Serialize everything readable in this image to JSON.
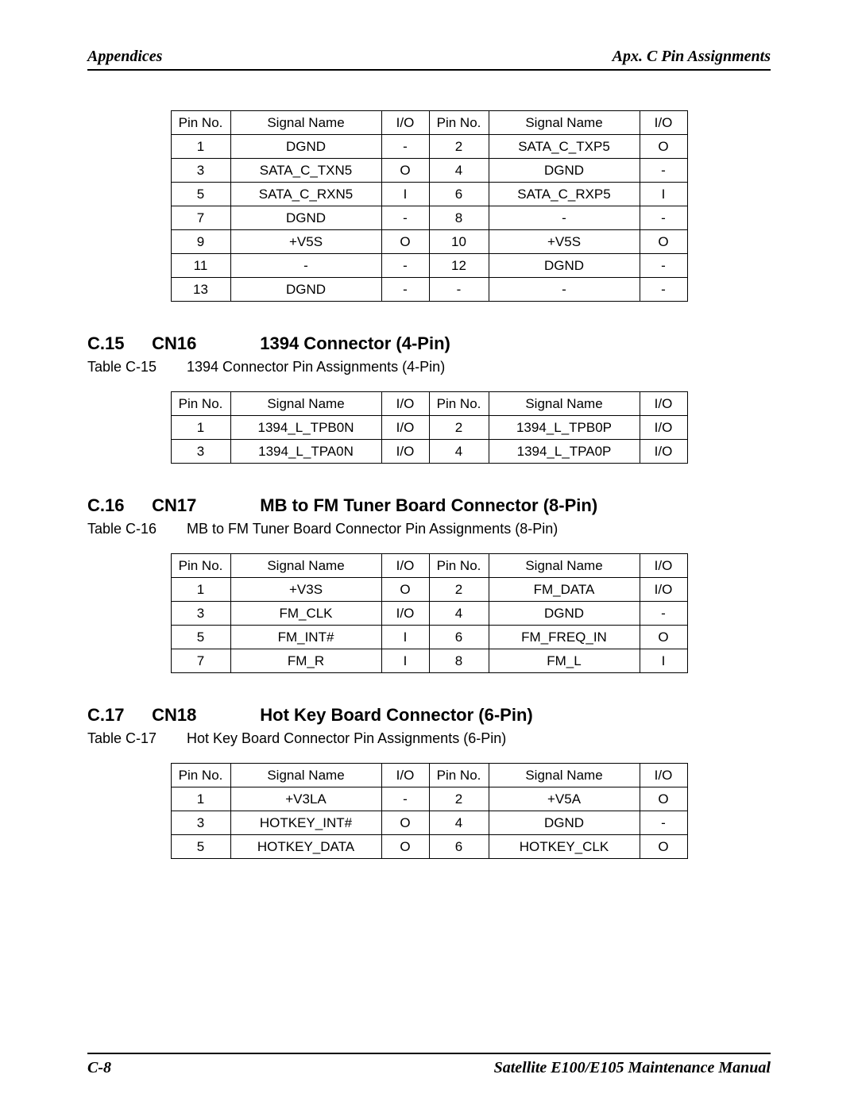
{
  "header": {
    "left": "Appendices",
    "right": "Apx. C Pin Assignments"
  },
  "footer": {
    "left": "C-8",
    "right": "Satellite E100/E105    Maintenance Manual"
  },
  "table_top": {
    "columns": [
      "Pin No.",
      "Signal Name",
      "I/O",
      "Pin No.",
      "Signal Name",
      "I/O"
    ],
    "rows": [
      [
        "1",
        "DGND",
        "-",
        "2",
        "SATA_C_TXP5",
        "O"
      ],
      [
        "3",
        "SATA_C_TXN5",
        "O",
        "4",
        "DGND",
        "-"
      ],
      [
        "5",
        "SATA_C_RXN5",
        "I",
        "6",
        "SATA_C_RXP5",
        "I"
      ],
      [
        "7",
        "DGND",
        "-",
        "8",
        "-",
        "-"
      ],
      [
        "9",
        "+V5S",
        "O",
        "10",
        "+V5S",
        "O"
      ],
      [
        "11",
        "-",
        "-",
        "12",
        "DGND",
        "-"
      ],
      [
        "13",
        "DGND",
        "-",
        "-",
        "-",
        "-"
      ]
    ]
  },
  "sec15": {
    "num": "C.15",
    "cn": "CN16",
    "title": "1394 Connector (4-Pin)",
    "table_num": "Table C-15",
    "caption": "1394 Connector Pin Assignments (4-Pin)",
    "columns": [
      "Pin No.",
      "Signal Name",
      "I/O",
      "Pin No.",
      "Signal Name",
      "I/O"
    ],
    "rows": [
      [
        "1",
        "1394_L_TPB0N",
        "I/O",
        "2",
        "1394_L_TPB0P",
        "I/O"
      ],
      [
        "3",
        "1394_L_TPA0N",
        "I/O",
        "4",
        "1394_L_TPA0P",
        "I/O"
      ]
    ]
  },
  "sec16": {
    "num": "C.16",
    "cn": "CN17",
    "title": "MB to FM Tuner Board Connector (8-Pin)",
    "table_num": "Table C-16",
    "caption": "MB to FM Tuner Board Connector Pin Assignments (8-Pin)",
    "columns": [
      "Pin No.",
      "Signal Name",
      "I/O",
      "Pin No.",
      "Signal Name",
      "I/O"
    ],
    "rows": [
      [
        "1",
        "+V3S",
        "O",
        "2",
        "FM_DATA",
        "I/O"
      ],
      [
        "3",
        "FM_CLK",
        "I/O",
        "4",
        "DGND",
        "-"
      ],
      [
        "5",
        "FM_INT#",
        "I",
        "6",
        "FM_FREQ_IN",
        "O"
      ],
      [
        "7",
        "FM_R",
        "I",
        "8",
        "FM_L",
        "I"
      ]
    ]
  },
  "sec17": {
    "num": "C.17",
    "cn": "CN18",
    "title": "Hot Key Board Connector (6-Pin)",
    "table_num": "Table C-17",
    "caption": "Hot Key Board Connector Pin Assignments (6-Pin)",
    "columns": [
      "Pin No.",
      "Signal Name",
      "I/O",
      "Pin No.",
      "Signal Name",
      "I/O"
    ],
    "rows": [
      [
        "1",
        "+V3LA",
        "-",
        "2",
        "+V5A",
        "O"
      ],
      [
        "3",
        "HOTKEY_INT#",
        "O",
        "4",
        "DGND",
        "-"
      ],
      [
        "5",
        "HOTKEY_DATA",
        "O",
        "6",
        "HOTKEY_CLK",
        "O"
      ]
    ]
  }
}
